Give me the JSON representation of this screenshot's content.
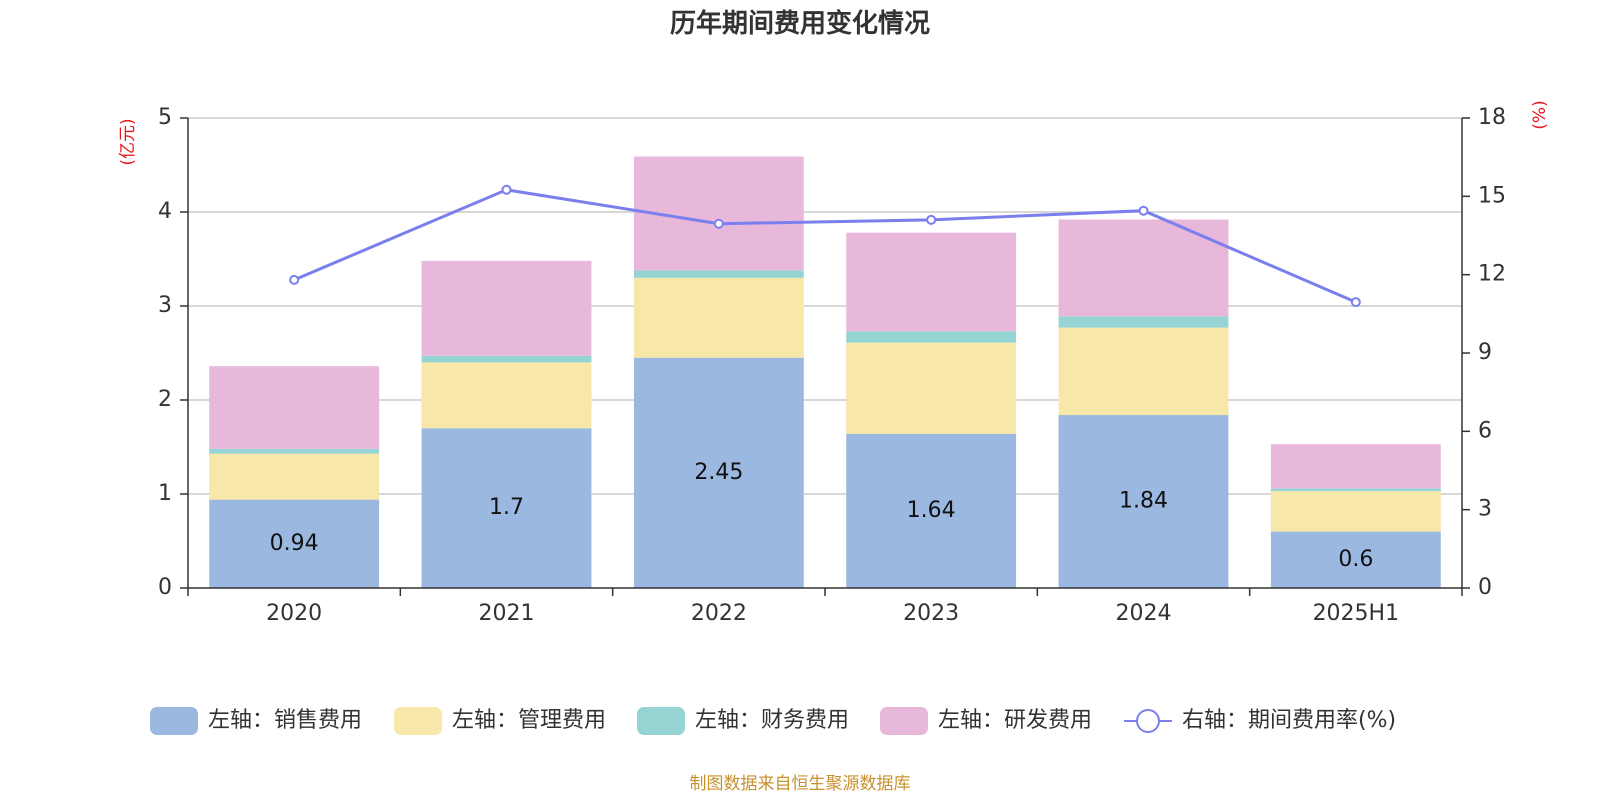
{
  "chart_data": {
    "type": "bar",
    "title": "历年期间费用变化情况",
    "categories": [
      "2020",
      "2021",
      "2022",
      "2023",
      "2024",
      "2025H1"
    ],
    "left_axis": {
      "unit": "(亿元)",
      "min": 0,
      "max": 5,
      "ticks": [
        "0",
        "1",
        "2",
        "3",
        "4",
        "5"
      ]
    },
    "right_axis": {
      "unit": "(%)",
      "min": 0,
      "max": 18,
      "ticks": [
        "0",
        "3",
        "6",
        "9",
        "12",
        "15",
        "18"
      ]
    },
    "grid": true,
    "stacked": true,
    "series": [
      {
        "name": "左轴：销售费用",
        "color": "#9bb8e1",
        "values": [
          0.94,
          1.7,
          2.45,
          1.64,
          1.84,
          0.6
        ],
        "labels": [
          "0.94",
          "1.7",
          "2.45",
          "1.64",
          "1.84",
          "0.6"
        ]
      },
      {
        "name": "左轴：管理费用",
        "color": "#f7e7a8",
        "values": [
          0.49,
          0.7,
          0.85,
          0.97,
          0.93,
          0.43
        ]
      },
      {
        "name": "左轴：财务费用",
        "color": "#96d4d3",
        "values": [
          0.05,
          0.07,
          0.08,
          0.12,
          0.12,
          0.03
        ]
      },
      {
        "name": "左轴：研发费用",
        "color": "#e8b8da",
        "values": [
          0.88,
          1.01,
          1.21,
          1.05,
          1.03,
          0.47
        ]
      }
    ],
    "line_series": {
      "name": "右轴：期间费用率(%)",
      "color": "#7b7fee",
      "axis": "right",
      "values": [
        11.8,
        15.25,
        13.95,
        14.1,
        14.45,
        10.95
      ]
    },
    "legend_position": "bottom"
  },
  "source": "制图数据来自恒生聚源数据库"
}
